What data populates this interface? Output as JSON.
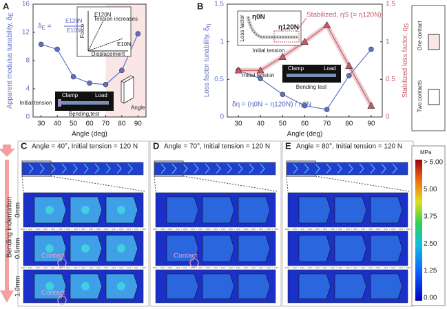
{
  "chart_data": [
    {
      "type": "line",
      "label": "A",
      "x": [
        30,
        40,
        50,
        60,
        70,
        80,
        90
      ],
      "series": [
        {
          "color": "#6070c8",
          "marker": "circle",
          "values": [
            10.3,
            9.6,
            5.7,
            4.8,
            4.6,
            6.6,
            11.8
          ]
        }
      ],
      "xlabel": "Angle (deg)",
      "ylabel": "Apparent modulus tunability, δ",
      "ylabel_sub": "E",
      "xlim": [
        25,
        95
      ],
      "ylim": [
        0,
        16
      ],
      "xticks": [
        30,
        40,
        50,
        60,
        70,
        80,
        90
      ],
      "yticks": [
        0,
        4,
        8,
        12,
        16
      ],
      "highlight": {
        "xrange": [
          70,
          95
        ],
        "color": "#fbe6e6"
      },
      "annotations": {
        "formula": "δ",
        "formula_sub": "E",
        "formula_eq": " = ",
        "numerator": "E120N",
        "denominator": "E10N",
        "force": "Force",
        "displacement": "Displacement",
        "e120": "E120N",
        "e10": "E10N",
        "tension": "Tension increases",
        "clamp": "Clamp",
        "load": "Load",
        "initial_tension": "Initial tension",
        "bending_test": "Bending test",
        "angle": "Angle"
      }
    },
    {
      "type": "line",
      "label": "B",
      "x": [
        30,
        40,
        50,
        60,
        70,
        80,
        90
      ],
      "series": [
        {
          "color": "#6070c8",
          "marker": "circle",
          "values": [
            0.62,
            0.51,
            0.3,
            0.15,
            0.1,
            0.55,
            0.9
          ]
        },
        {
          "color": "#c85a66",
          "marker": "triangle",
          "axis": "y2",
          "values": [
            0.62,
            0.62,
            0.8,
            1.0,
            1.22,
            0.68,
            0.15
          ]
        }
      ],
      "xlabel": "Angle (deg)",
      "ylabel": "Loss factor tunability, δ",
      "ylabel_sub": "η",
      "y2label": "Stabilized loss factor, η",
      "y2label_sub": "S",
      "xlim": [
        25,
        95
      ],
      "ylim": [
        0,
        1.5
      ],
      "y2lim": [
        0,
        1.5
      ],
      "xticks": [
        30,
        40,
        50,
        60,
        70,
        80,
        90
      ],
      "yticks": [
        0,
        0.5,
        1,
        1.5
      ],
      "y2ticks": [
        0,
        0.5,
        1,
        1.5
      ],
      "annotations": {
        "formula": "δη = (η0N − η120N) / η0N",
        "loss_factor": "Loss factor",
        "eta0": "η0N",
        "eta120": "η120N",
        "initial_tension_inset": "Initial tension",
        "stabilized": "Stabilized, ηS (= η120N)",
        "initial_tension": "Initial tension",
        "clamp": "Clamp",
        "load": "Load",
        "bending_test": "Bending test"
      }
    }
  ],
  "legend": {
    "one": "One contact",
    "two": "Two contacts"
  },
  "panels": [
    {
      "label": "C",
      "title": "Angle = 40°, Initial tension = 120 N",
      "contacts": [
        "Contact",
        "Contact"
      ]
    },
    {
      "label": "D",
      "title": "Angle = 70°, Initial tension = 120 N",
      "contacts": [
        "Contact"
      ]
    },
    {
      "label": "E",
      "title": "Angle = 80°, Initial tension = 120 N"
    }
  ],
  "indentation": {
    "label": "Bending indentation",
    "levels": [
      "0mm",
      "0.5mm",
      "1.0mm"
    ]
  },
  "colorbar": {
    "unit": "MPa",
    "labels": [
      "> 5.00",
      "5.00",
      "3.75",
      "2.50",
      "1.25",
      "0.00"
    ]
  }
}
